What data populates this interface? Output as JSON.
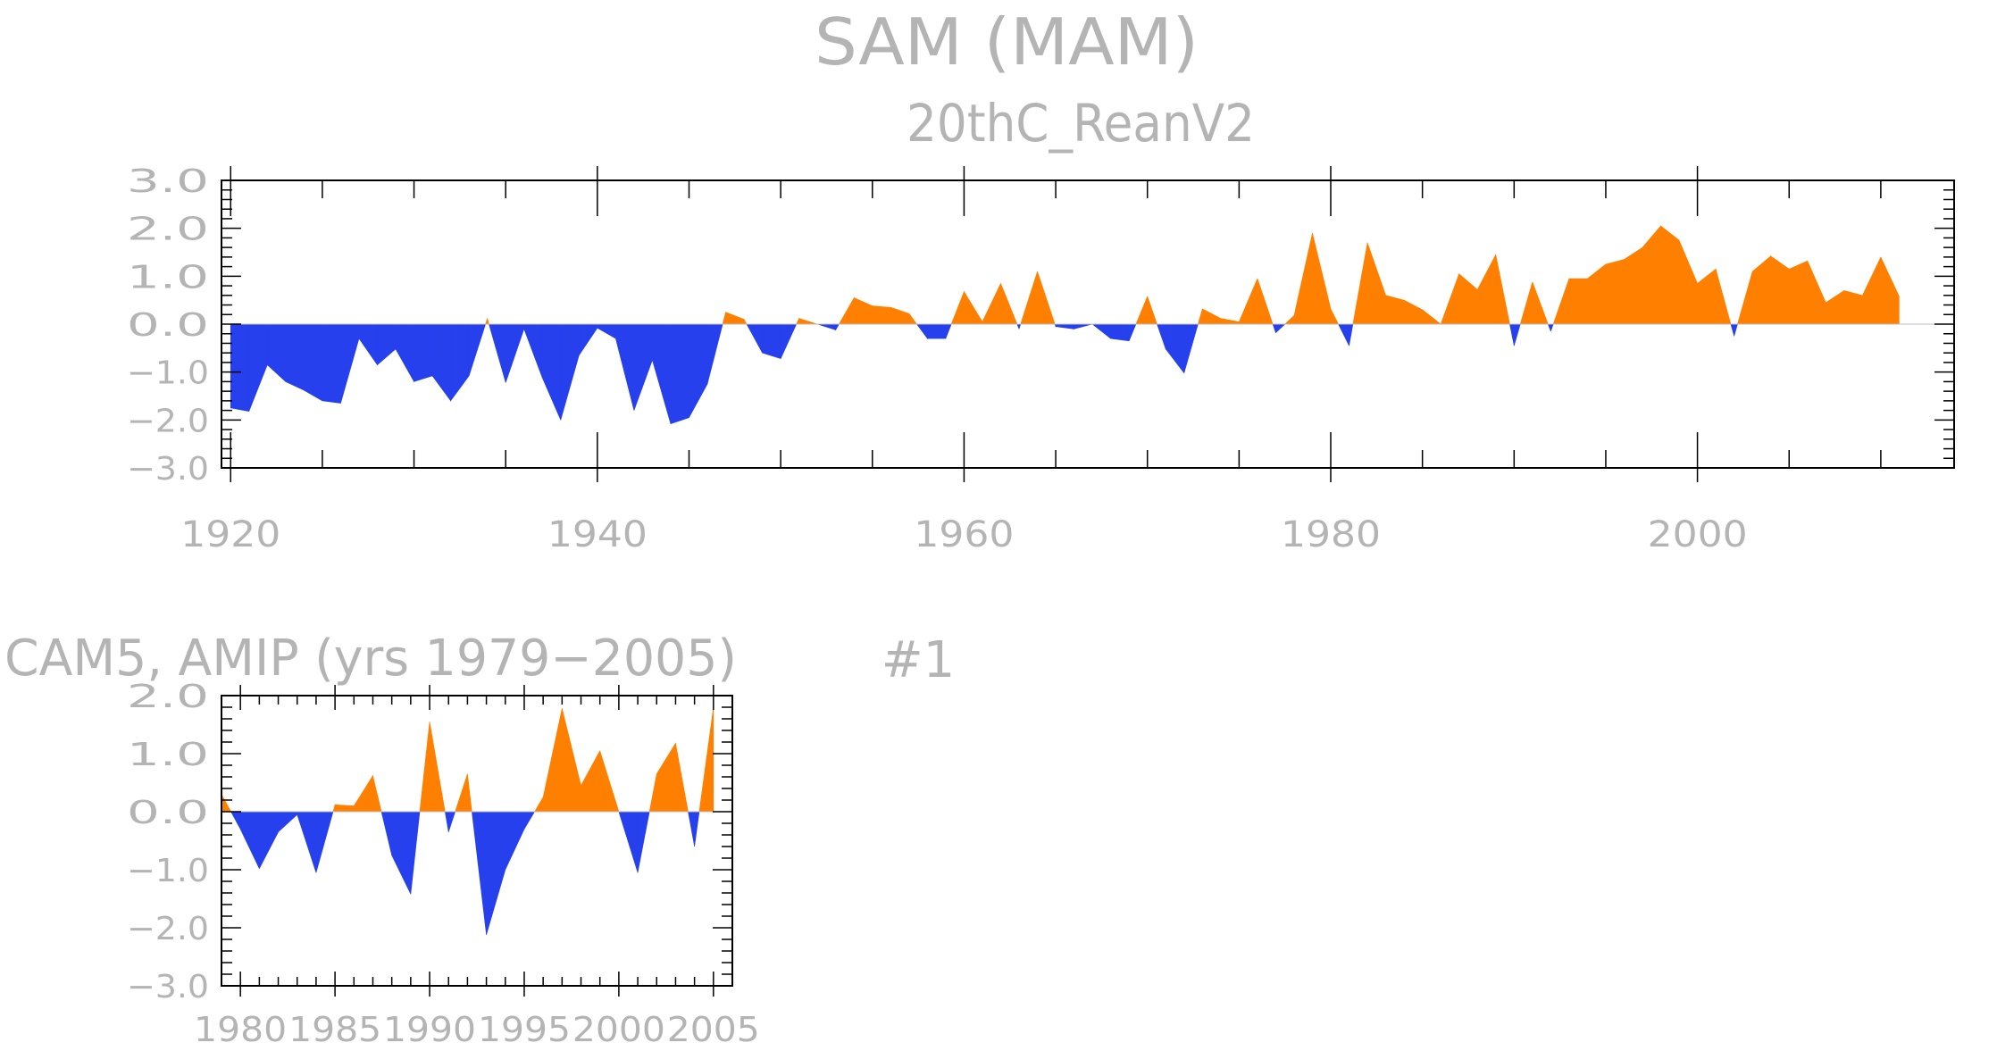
{
  "main_title": "SAM (MAM)",
  "panel_number": "#1",
  "colors": {
    "positive": "#ff8000",
    "negative": "#2640ee",
    "text": "#b4b4b4",
    "frame": "#000000"
  },
  "chart_data": [
    {
      "type": "area",
      "title": "20thC_ReanV2",
      "xlabel": "",
      "ylabel": "",
      "xlim": [
        1919.5,
        2014
      ],
      "ylim": [
        -3,
        3
      ],
      "x_ticks": [
        1920,
        1940,
        1960,
        1980,
        2000
      ],
      "x_tick_labels": [
        "1920",
        "1940",
        "1960",
        "1980",
        "2000"
      ],
      "y_ticks": [
        -3,
        -2,
        -1,
        0,
        1,
        2,
        3
      ],
      "y_tick_labels": [
        "−3.0",
        "−2.0",
        "−1.0",
        "0.0",
        "1.0",
        "2.0",
        "3.0"
      ],
      "grid": false,
      "fill": "above zero orange, below zero blue",
      "x": [
        1920,
        1921,
        1922,
        1923,
        1924,
        1925,
        1926,
        1927,
        1928,
        1929,
        1930,
        1931,
        1932,
        1933,
        1934,
        1935,
        1936,
        1937,
        1938,
        1939,
        1940,
        1941,
        1942,
        1943,
        1944,
        1945,
        1946,
        1947,
        1948,
        1949,
        1950,
        1951,
        1952,
        1953,
        1954,
        1955,
        1956,
        1957,
        1958,
        1959,
        1960,
        1961,
        1962,
        1963,
        1964,
        1965,
        1966,
        1967,
        1968,
        1969,
        1970,
        1971,
        1972,
        1973,
        1974,
        1975,
        1976,
        1977,
        1978,
        1979,
        1980,
        1981,
        1982,
        1983,
        1984,
        1985,
        1986,
        1987,
        1988,
        1989,
        1990,
        1991,
        1992,
        1993,
        1994,
        1995,
        1996,
        1997,
        1998,
        1999,
        2000,
        2001,
        2002,
        2003,
        2004,
        2005,
        2006,
        2007,
        2008,
        2009,
        2010,
        2011
      ],
      "values": [
        -1.75,
        -1.82,
        -0.85,
        -1.2,
        -1.38,
        -1.6,
        -1.65,
        -0.3,
        -0.85,
        -0.52,
        -1.2,
        -1.08,
        -1.6,
        -1.08,
        0.12,
        -1.22,
        -0.1,
        -1.12,
        -2.0,
        -0.65,
        -0.08,
        -0.3,
        -1.8,
        -0.75,
        -2.08,
        -1.95,
        -1.25,
        0.25,
        0.1,
        -0.6,
        -0.72,
        0.12,
        0.0,
        -0.12,
        0.55,
        0.38,
        0.35,
        0.22,
        -0.3,
        -0.3,
        0.68,
        0.05,
        0.85,
        -0.1,
        1.1,
        -0.05,
        -0.1,
        0.0,
        -0.3,
        -0.35,
        0.58,
        -0.52,
        -1.02,
        0.32,
        0.12,
        0.05,
        0.95,
        -0.18,
        0.18,
        1.9,
        0.32,
        -0.45,
        1.7,
        0.6,
        0.5,
        0.3,
        0.0,
        1.05,
        0.72,
        1.45,
        -0.45,
        0.88,
        -0.15,
        0.95,
        0.95,
        1.25,
        1.35,
        1.6,
        2.05,
        1.75,
        0.85,
        1.15,
        -0.25,
        1.1,
        1.42,
        1.15,
        1.32,
        0.45,
        0.7,
        0.6,
        1.4,
        0.58
      ]
    },
    {
      "type": "area",
      "title": "CAM5, AMIP (yrs 1979−2005)",
      "xlabel": "",
      "ylabel": "",
      "xlim": [
        1979,
        2006
      ],
      "ylim": [
        -3,
        2
      ],
      "x_ticks": [
        1980,
        1985,
        1990,
        1995,
        2000,
        2005
      ],
      "x_tick_labels": [
        "1980",
        "1985",
        "1990",
        "1995",
        "2000",
        "2005"
      ],
      "y_ticks": [
        -3,
        -2,
        -1,
        0,
        1,
        2
      ],
      "y_tick_labels": [
        "−3.0",
        "−2.0",
        "−1.0",
        "0.0",
        "1.0",
        "2.0"
      ],
      "grid": false,
      "fill": "above zero orange, below zero blue",
      "x": [
        1979,
        1980,
        1981,
        1982,
        1983,
        1984,
        1985,
        1986,
        1987,
        1988,
        1989,
        1990,
        1991,
        1992,
        1993,
        1994,
        1995,
        1996,
        1997,
        1998,
        1999,
        2000,
        2001,
        2002,
        2003,
        2004,
        2005
      ],
      "values": [
        0.3,
        -0.3,
        -0.98,
        -0.35,
        -0.05,
        -1.05,
        0.12,
        0.1,
        0.62,
        -0.75,
        -1.42,
        1.55,
        -0.35,
        0.65,
        -2.12,
        -1.0,
        -0.3,
        0.25,
        1.78,
        0.45,
        1.05,
        0.0,
        -1.05,
        0.65,
        1.18,
        -0.6,
        1.8
      ]
    }
  ]
}
